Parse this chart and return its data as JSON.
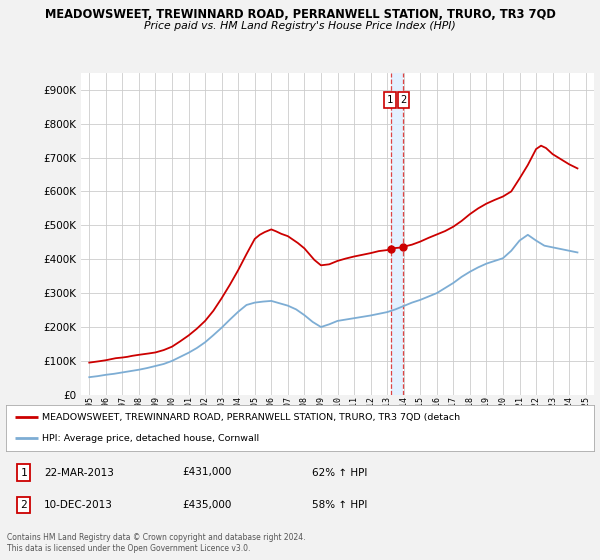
{
  "title": "MEADOWSWEET, TREWINNARD ROAD, PERRANWELL STATION, TRURO, TR3 7QD",
  "subtitle": "Price paid vs. HM Land Registry's House Price Index (HPI)",
  "legend_line1": "MEADOWSWEET, TREWINNARD ROAD, PERRANWELL STATION, TRURO, TR3 7QD (detach",
  "legend_line2": "HPI: Average price, detached house, Cornwall",
  "annotation1_date": "22-MAR-2013",
  "annotation1_price": "£431,000",
  "annotation1_hpi": "62% ↑ HPI",
  "annotation2_date": "10-DEC-2013",
  "annotation2_price": "£435,000",
  "annotation2_hpi": "58% ↑ HPI",
  "footer": "Contains HM Land Registry data © Crown copyright and database right 2024.\nThis data is licensed under the Open Government Licence v3.0.",
  "vline_x1": 2013.22,
  "vline_x2": 2013.94,
  "vline_color": "#dd4444",
  "shade_color": "#ddeeff",
  "marker1_x": 2013.22,
  "marker1_y": 431000,
  "marker2_x": 2013.94,
  "marker2_y": 435000,
  "ylim": [
    0,
    950000
  ],
  "xlim": [
    1994.5,
    2025.5
  ],
  "red_line_color": "#cc0000",
  "blue_line_color": "#7dadd4",
  "background_color": "#f2f2f2",
  "plot_bg_color": "#ffffff",
  "red_x": [
    1995.0,
    1995.3,
    1995.6,
    1996.0,
    1996.3,
    1996.6,
    1997.0,
    1997.3,
    1997.6,
    1998.0,
    1998.3,
    1998.6,
    1999.0,
    1999.5,
    2000.0,
    2000.5,
    2001.0,
    2001.5,
    2002.0,
    2002.5,
    2003.0,
    2003.5,
    2004.0,
    2004.5,
    2005.0,
    2005.3,
    2005.6,
    2006.0,
    2006.3,
    2006.6,
    2007.0,
    2007.3,
    2007.6,
    2008.0,
    2008.3,
    2008.6,
    2009.0,
    2009.5,
    2010.0,
    2010.5,
    2011.0,
    2011.5,
    2012.0,
    2012.5,
    2013.0,
    2013.22,
    2013.5,
    2013.94,
    2014.0,
    2014.5,
    2015.0,
    2015.5,
    2016.0,
    2016.5,
    2017.0,
    2017.5,
    2018.0,
    2018.5,
    2019.0,
    2019.5,
    2020.0,
    2020.5,
    2021.0,
    2021.5,
    2022.0,
    2022.3,
    2022.6,
    2023.0,
    2023.5,
    2024.0,
    2024.5
  ],
  "red_y": [
    95000,
    97000,
    99000,
    102000,
    105000,
    108000,
    110000,
    112000,
    115000,
    118000,
    120000,
    122000,
    125000,
    132000,
    142000,
    158000,
    175000,
    195000,
    218000,
    248000,
    285000,
    325000,
    368000,
    415000,
    460000,
    472000,
    480000,
    488000,
    482000,
    475000,
    468000,
    458000,
    448000,
    432000,
    415000,
    398000,
    382000,
    385000,
    395000,
    402000,
    408000,
    413000,
    418000,
    424000,
    427000,
    431000,
    433000,
    435000,
    437000,
    443000,
    452000,
    463000,
    473000,
    483000,
    496000,
    513000,
    533000,
    550000,
    564000,
    575000,
    585000,
    600000,
    638000,
    678000,
    725000,
    735000,
    728000,
    710000,
    695000,
    680000,
    668000
  ],
  "blue_x": [
    1995.0,
    1995.5,
    1996.0,
    1996.5,
    1997.0,
    1997.5,
    1998.0,
    1998.5,
    1999.0,
    1999.5,
    2000.0,
    2000.5,
    2001.0,
    2001.5,
    2002.0,
    2002.5,
    2003.0,
    2003.5,
    2004.0,
    2004.5,
    2005.0,
    2005.5,
    2006.0,
    2006.5,
    2007.0,
    2007.5,
    2008.0,
    2008.5,
    2009.0,
    2009.5,
    2010.0,
    2010.5,
    2011.0,
    2011.5,
    2012.0,
    2012.5,
    2013.0,
    2013.5,
    2014.0,
    2014.5,
    2015.0,
    2015.5,
    2016.0,
    2016.5,
    2017.0,
    2017.5,
    2018.0,
    2018.5,
    2019.0,
    2019.5,
    2020.0,
    2020.5,
    2021.0,
    2021.5,
    2022.0,
    2022.5,
    2023.0,
    2023.5,
    2024.0,
    2024.5
  ],
  "blue_y": [
    52000,
    55000,
    59000,
    62000,
    66000,
    70000,
    74000,
    79000,
    85000,
    91000,
    100000,
    112000,
    124000,
    138000,
    155000,
    176000,
    198000,
    222000,
    245000,
    265000,
    272000,
    275000,
    277000,
    270000,
    263000,
    252000,
    235000,
    215000,
    200000,
    208000,
    218000,
    222000,
    226000,
    230000,
    234000,
    239000,
    244000,
    252000,
    262000,
    272000,
    280000,
    290000,
    300000,
    315000,
    330000,
    348000,
    363000,
    376000,
    387000,
    395000,
    403000,
    425000,
    455000,
    472000,
    455000,
    440000,
    435000,
    430000,
    425000,
    420000
  ]
}
